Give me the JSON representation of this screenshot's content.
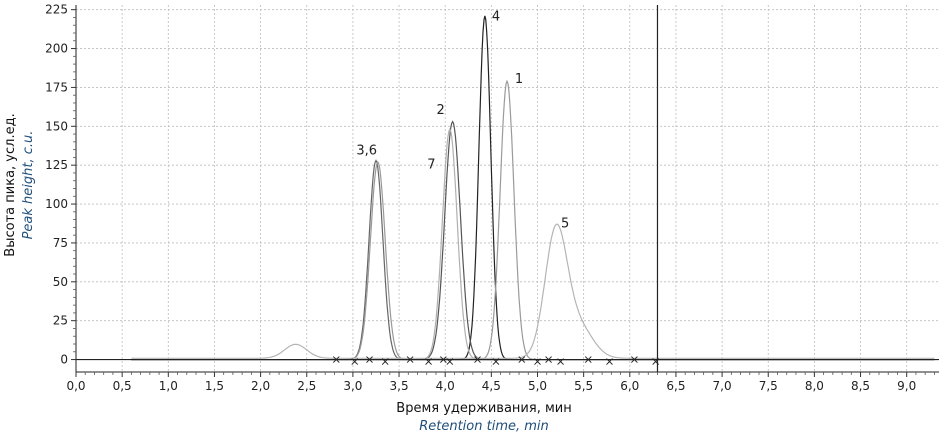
{
  "chart_data": {
    "type": "line",
    "xlabel_ru": "Время удерживания, мин",
    "xlabel_en": "Retention time, min",
    "ylabel_ru": "Высота пика, усл.ед.",
    "ylabel_en": "Peak height, c.u.",
    "xlim": [
      0,
      9.35
    ],
    "ylim": [
      -8,
      228
    ],
    "x_ticks": [
      "0,0",
      "0,5",
      "1,0",
      "1,5",
      "2,0",
      "2,5",
      "3,0",
      "3,5",
      "4,0",
      "4,5",
      "5,0",
      "5,5",
      "6,0",
      "6,5",
      "7,0",
      "7,5",
      "8,0",
      "8,5",
      "9,0"
    ],
    "y_ticks": [
      "0",
      "25",
      "50",
      "75",
      "100",
      "125",
      "150",
      "175",
      "200",
      "225"
    ],
    "grid": true,
    "vertical_marker_x": 6.3,
    "series": [
      {
        "color": "#222222",
        "baseline": 0.0,
        "peaks": [
          {
            "center": 4.43,
            "height": 221,
            "sigma": 0.065
          }
        ]
      },
      {
        "color": "#9a9a9a",
        "baseline": 0.0,
        "peaks": [
          {
            "center": 4.67,
            "height": 179,
            "sigma": 0.075
          }
        ]
      },
      {
        "color": "#555555",
        "baseline": 0.0,
        "peaks": [
          {
            "center": 4.08,
            "height": 153,
            "sigma": 0.085
          }
        ]
      },
      {
        "color": "#b0b0b0",
        "baseline": 0.0,
        "peaks": [
          {
            "center": 4.05,
            "height": 148,
            "sigma": 0.08
          }
        ]
      },
      {
        "color": "#666666",
        "baseline": 0.0,
        "peaks": [
          {
            "center": 3.25,
            "height": 128,
            "sigma": 0.075
          }
        ]
      },
      {
        "color": "#999999",
        "baseline": 0.0,
        "peaks": [
          {
            "center": 3.27,
            "height": 127,
            "sigma": 0.08
          }
        ]
      },
      {
        "color": "#b5b5b5",
        "baseline": 0.8,
        "peaks": [
          {
            "center": 5.2,
            "height": 81,
            "sigma": 0.12
          },
          {
            "center": 5.45,
            "height": 20,
            "sigma": 0.15
          },
          {
            "center": 2.38,
            "height": 9,
            "sigma": 0.12
          }
        ]
      }
    ],
    "peak_labels": [
      {
        "text": "4",
        "x": 4.55,
        "y": 218
      },
      {
        "text": "1",
        "x": 4.8,
        "y": 178
      },
      {
        "text": "2",
        "x": 3.95,
        "y": 158
      },
      {
        "text": "7",
        "x": 3.85,
        "y": 123
      },
      {
        "text": "3,6",
        "x": 3.15,
        "y": 132
      },
      {
        "text": "5",
        "x": 5.3,
        "y": 85
      }
    ],
    "integration_marks_x": [
      2.82,
      3.02,
      3.18,
      3.35,
      3.62,
      3.82,
      3.98,
      4.05,
      4.35,
      4.55,
      4.83,
      5.0,
      5.12,
      5.25,
      5.55,
      5.78,
      6.05,
      6.28
    ]
  }
}
